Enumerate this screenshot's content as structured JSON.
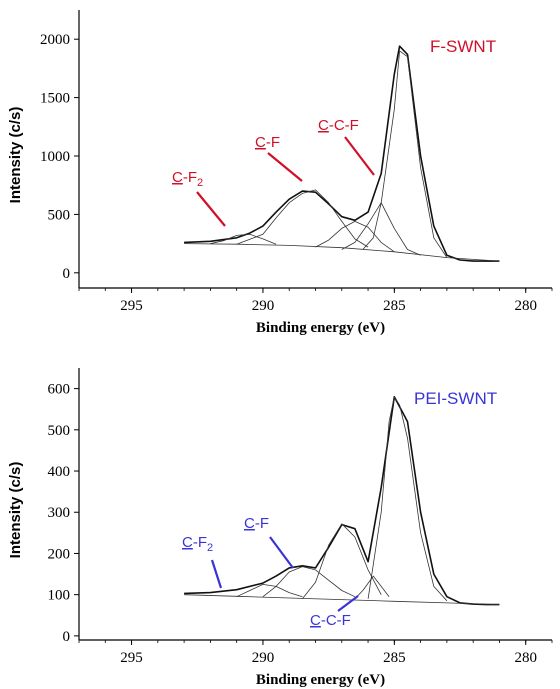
{
  "chart_data": [
    {
      "type": "line",
      "title": "F-SWNT",
      "title_color": "#d01028",
      "xlabel": "Binding energy (eV)",
      "ylabel": "Intensity (c/s)",
      "xlim": [
        297,
        279
      ],
      "ylim": [
        -130,
        2250
      ],
      "x_reversed": true,
      "xticks": [
        "295",
        "290",
        "285",
        "280"
      ],
      "yticks": [
        "0",
        "500",
        "1000",
        "1500",
        "2000"
      ],
      "grid": false,
      "annotations": [
        {
          "ul": "C",
          "rest": "-F",
          "sub": "2",
          "color": "#d01028"
        },
        {
          "ul": "C",
          "rest": "-F",
          "sub": "",
          "color": "#d01028"
        },
        {
          "ul": "C",
          "rest": "-C-F",
          "sub": "",
          "color": "#d01028"
        }
      ],
      "series": [
        {
          "x": [
            293,
            292,
            291,
            290.5,
            290,
            289.5,
            289,
            288.5,
            288,
            287.5,
            287,
            286.5,
            286,
            285.5,
            285,
            284.8,
            284.5,
            284,
            283.5,
            283,
            282.5,
            282,
            281.5,
            281
          ],
          "y": [
            260,
            270,
            300,
            340,
            400,
            520,
            630,
            700,
            690,
            590,
            480,
            450,
            520,
            850,
            1700,
            1940,
            1870,
            1000,
            400,
            150,
            110,
            100,
            100,
            100
          ]
        },
        {
          "x": [
            293,
            291,
            289,
            287,
            285,
            283,
            281
          ],
          "y": [
            250,
            245,
            235,
            215,
            180,
            130,
            100
          ]
        },
        {
          "x": [
            292,
            291.5,
            291,
            290.5,
            290,
            289.5
          ],
          "y": [
            250,
            275,
            320,
            330,
            290,
            245
          ]
        },
        {
          "x": [
            291,
            290,
            289.5,
            289,
            288.5,
            288,
            287.5,
            287,
            286.5,
            286
          ],
          "y": [
            245,
            330,
            470,
            600,
            680,
            710,
            600,
            440,
            290,
            220
          ]
        },
        {
          "x": [
            288,
            287.5,
            287,
            286.5,
            286,
            285.5,
            285
          ],
          "y": [
            220,
            280,
            380,
            440,
            390,
            260,
            180
          ]
        },
        {
          "x": [
            287,
            286.5,
            286,
            285.5,
            285,
            284.5,
            284
          ],
          "y": [
            200,
            260,
            420,
            600,
            380,
            200,
            150
          ]
        },
        {
          "x": [
            286.2,
            285.8,
            285.5,
            285,
            284.8,
            284.5,
            284,
            283.5,
            283
          ],
          "y": [
            200,
            300,
            600,
            1400,
            1900,
            1850,
            900,
            300,
            130
          ]
        }
      ]
    },
    {
      "type": "line",
      "title": "PEI-SWNT",
      "title_color": "#3a34d6",
      "xlabel": "Binding energy (eV)",
      "ylabel": "Intensity (c/s)",
      "xlim": [
        297,
        279
      ],
      "ylim": [
        -10,
        650
      ],
      "x_reversed": true,
      "xticks": [
        "295",
        "290",
        "285",
        "280"
      ],
      "yticks": [
        "0",
        "100",
        "200",
        "300",
        "400",
        "500",
        "600"
      ],
      "grid": false,
      "annotations": [
        {
          "ul": "C",
          "rest": "-F",
          "sub": "2",
          "color": "#3a34d6"
        },
        {
          "ul": "C",
          "rest": "-F",
          "sub": "",
          "color": "#3a34d6"
        },
        {
          "ul": "C",
          "rest": "-C-F",
          "sub": "",
          "color": "#3a34d6"
        }
      ],
      "series": [
        {
          "x": [
            293,
            292,
            291,
            290,
            289.5,
            289,
            288.5,
            288,
            287.5,
            287,
            286.5,
            286,
            285.5,
            285,
            284.5,
            284,
            283.5,
            283,
            282.5,
            282,
            281.5,
            281
          ],
          "y": [
            103,
            105,
            112,
            128,
            145,
            165,
            170,
            165,
            215,
            270,
            260,
            180,
            360,
            580,
            520,
            300,
            150,
            95,
            80,
            77,
            76,
            76
          ]
        },
        {
          "x": [
            293,
            291,
            289,
            287,
            285,
            283,
            281
          ],
          "y": [
            100,
            96,
            92,
            88,
            84,
            80,
            76
          ]
        },
        {
          "x": [
            291,
            290.5,
            290,
            289.5,
            289,
            288.5
          ],
          "y": [
            95,
            110,
            125,
            120,
            105,
            95
          ]
        },
        {
          "x": [
            290,
            289.5,
            289,
            288.5,
            288,
            287.5,
            287,
            286.5
          ],
          "y": [
            95,
            120,
            155,
            168,
            160,
            135,
            110,
            95
          ]
        },
        {
          "x": [
            288.5,
            288,
            287.5,
            287,
            286.5,
            286,
            285.5
          ],
          "y": [
            90,
            130,
            220,
            272,
            240,
            160,
            100
          ]
        },
        {
          "x": [
            286.5,
            286.2,
            285.8,
            285.5,
            285.2
          ],
          "y": [
            90,
            110,
            145,
            120,
            95
          ]
        },
        {
          "x": [
            286,
            285.5,
            285.2,
            285,
            284.8,
            284.5,
            284,
            283.5,
            283
          ],
          "y": [
            90,
            300,
            520,
            580,
            560,
            480,
            250,
            120,
            85
          ]
        }
      ]
    }
  ]
}
